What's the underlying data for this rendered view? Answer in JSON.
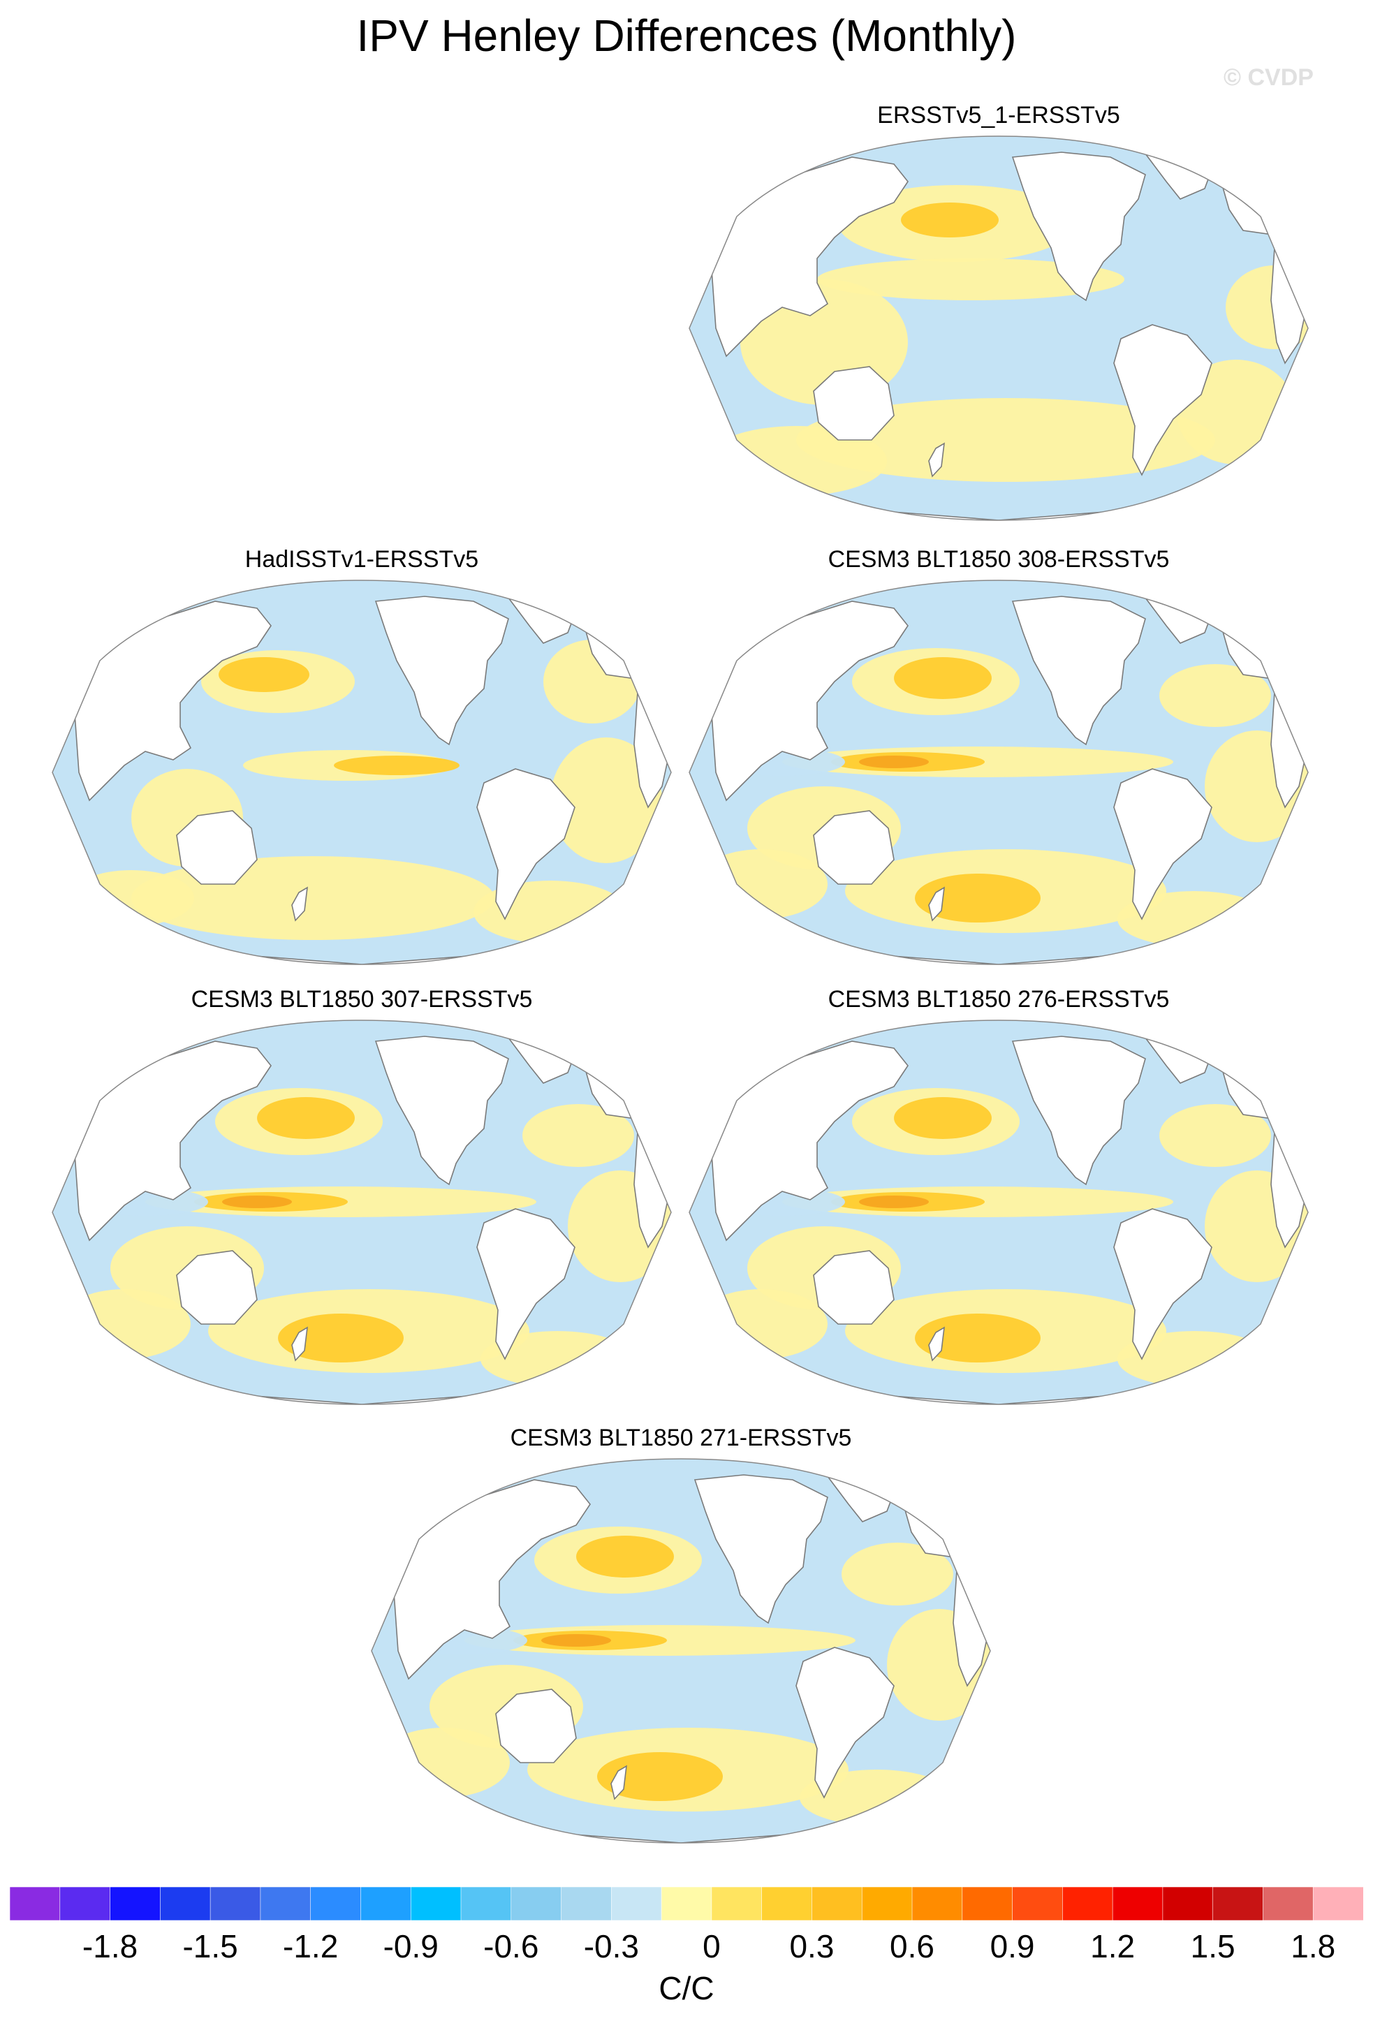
{
  "title": "IPV Henley Differences (Monthly)",
  "watermark": "© CVDP",
  "panels": [
    {
      "title": "ERSSTv5_1-ERSSTv5",
      "pattern": "weak"
    },
    {
      "title": "HadISSTv1-ERSSTv5",
      "pattern": "moderate"
    },
    {
      "title": "CESM3 BLT1850 308-ERSSTv5",
      "pattern": "strong"
    },
    {
      "title": "CESM3 BLT1850 307-ERSSTv5",
      "pattern": "strong"
    },
    {
      "title": "CESM3 BLT1850 276-ERSSTv5",
      "pattern": "strong"
    },
    {
      "title": "CESM3 BLT1850 271-ERSSTv5",
      "pattern": "strong"
    }
  ],
  "colorbar": {
    "colors": [
      "#8a2be2",
      "#5b2bf0",
      "#1414ff",
      "#1c3cf0",
      "#3a5ae6",
      "#3e78f0",
      "#2b8cff",
      "#1ea0ff",
      "#00bfff",
      "#55c4f5",
      "#87cdf0",
      "#a9d8f0",
      "#c8e6f5",
      "#fffaa8",
      "#ffe460",
      "#ffd030",
      "#ffbf20",
      "#ffaa00",
      "#ff8c00",
      "#ff6a00",
      "#ff4d10",
      "#ff2200",
      "#ee0000",
      "#d20000",
      "#c81414",
      "#e06666",
      "#ffb0b8"
    ],
    "ticks": [
      "-1.8",
      "-1.5",
      "-1.2",
      "-0.9",
      "-0.6",
      "-0.3",
      "0",
      "0.3",
      "0.6",
      "0.9",
      "1.2",
      "1.5",
      "1.8"
    ],
    "units": "C/C"
  },
  "colors": {
    "ocean_blue": "#c4e3f5",
    "ocean_yellow": "#fff3a0",
    "orange": "#ffcc2e",
    "deep_orange": "#f7a520",
    "land": "#ffffff",
    "coast": "#7a7a7a"
  }
}
